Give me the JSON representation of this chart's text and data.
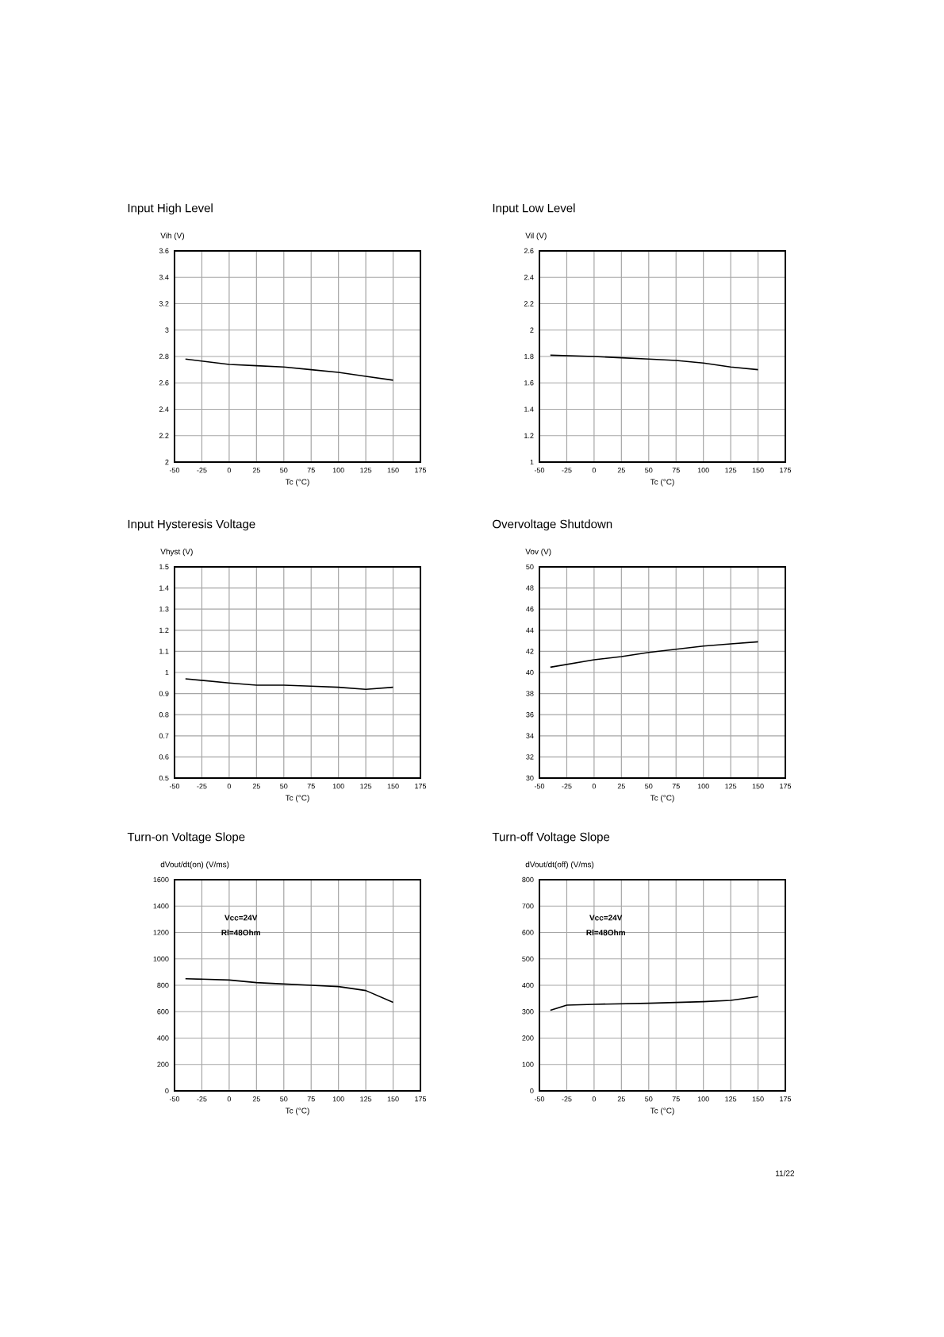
{
  "chart_data": [
    {
      "type": "line",
      "title": "Input High Level",
      "xlabel": "Tc (°C)",
      "ylabel": "Vih (V)",
      "color": "#000000",
      "grid": true,
      "line_style": "solid",
      "xlim": [
        -50,
        175
      ],
      "xticks": [
        -50,
        -25,
        0,
        25,
        50,
        75,
        100,
        125,
        150,
        175
      ],
      "ylim": [
        2,
        3.6
      ],
      "yticks": [
        2,
        2.2,
        2.4,
        2.6,
        2.8,
        3,
        3.2,
        3.4,
        3.6
      ],
      "x": [
        -40,
        0,
        25,
        50,
        75,
        100,
        125,
        150
      ],
      "values": [
        2.78,
        2.74,
        2.73,
        2.72,
        2.7,
        2.68,
        2.65,
        2.62
      ]
    },
    {
      "type": "line",
      "title": "Input Low Level",
      "xlabel": "Tc (°C)",
      "ylabel": "Vil (V)",
      "color": "#000000",
      "grid": true,
      "line_style": "solid",
      "xlim": [
        -50,
        175
      ],
      "xticks": [
        -50,
        -25,
        0,
        25,
        50,
        75,
        100,
        125,
        150,
        175
      ],
      "ylim": [
        1,
        2.6
      ],
      "yticks": [
        1,
        1.2,
        1.4,
        1.6,
        1.8,
        2,
        2.2,
        2.4,
        2.6
      ],
      "x": [
        -40,
        0,
        25,
        50,
        75,
        100,
        125,
        150
      ],
      "values": [
        1.81,
        1.8,
        1.79,
        1.78,
        1.77,
        1.75,
        1.72,
        1.7
      ]
    },
    {
      "type": "line",
      "title": "Input Hysteresis Voltage",
      "xlabel": "Tc (°C)",
      "ylabel": "Vhyst (V)",
      "color": "#000000",
      "grid": true,
      "line_style": "solid",
      "xlim": [
        -50,
        175
      ],
      "xticks": [
        -50,
        -25,
        0,
        25,
        50,
        75,
        100,
        125,
        150,
        175
      ],
      "ylim": [
        0.5,
        1.5
      ],
      "yticks": [
        0.5,
        0.6,
        0.7,
        0.8,
        0.9,
        1,
        1.1,
        1.2,
        1.3,
        1.4,
        1.5
      ],
      "x": [
        -40,
        0,
        25,
        50,
        75,
        100,
        125,
        150
      ],
      "values": [
        0.97,
        0.95,
        0.94,
        0.94,
        0.935,
        0.93,
        0.92,
        0.93
      ]
    },
    {
      "type": "line",
      "title": "Overvoltage Shutdown",
      "xlabel": "Tc (°C)",
      "ylabel": "Vov (V)",
      "color": "#000000",
      "grid": true,
      "line_style": "solid",
      "xlim": [
        -50,
        175
      ],
      "xticks": [
        -50,
        -25,
        0,
        25,
        50,
        75,
        100,
        125,
        150,
        175
      ],
      "ylim": [
        30,
        50
      ],
      "yticks": [
        30,
        32,
        34,
        36,
        38,
        40,
        42,
        44,
        46,
        48,
        50
      ],
      "x": [
        -40,
        0,
        25,
        50,
        75,
        100,
        125,
        150
      ],
      "values": [
        40.5,
        41.2,
        41.5,
        41.9,
        42.2,
        42.5,
        42.7,
        42.9
      ]
    },
    {
      "type": "line",
      "title": "Turn-on Voltage Slope",
      "xlabel": "Tc (°C)",
      "ylabel": "dVout/dt(on) (V/ms)",
      "color": "#000000",
      "grid": true,
      "line_style": "solid",
      "xlim": [
        -50,
        175
      ],
      "xticks": [
        -50,
        -25,
        0,
        25,
        50,
        75,
        100,
        125,
        150,
        175
      ],
      "ylim": [
        0,
        1600
      ],
      "yticks": [
        0,
        200,
        400,
        600,
        800,
        1000,
        1200,
        1400,
        1600
      ],
      "x": [
        -40,
        0,
        25,
        50,
        75,
        100,
        125,
        150
      ],
      "values": [
        850,
        840,
        820,
        810,
        800,
        790,
        760,
        670
      ],
      "annotations": [
        "Vcc=24V",
        "Rl=48Ohm"
      ]
    },
    {
      "type": "line",
      "title": "Turn-off Voltage Slope",
      "xlabel": "Tc (°C)",
      "ylabel": "dVout/dt(off) (V/ms)",
      "color": "#000000",
      "grid": true,
      "line_style": "solid",
      "xlim": [
        -50,
        175
      ],
      "xticks": [
        -50,
        -25,
        0,
        25,
        50,
        75,
        100,
        125,
        150,
        175
      ],
      "ylim": [
        0,
        800
      ],
      "yticks": [
        0,
        100,
        200,
        300,
        400,
        500,
        600,
        700,
        800
      ],
      "x": [
        -40,
        -25,
        0,
        50,
        100,
        125,
        150
      ],
      "values": [
        305,
        325,
        328,
        332,
        338,
        343,
        357
      ],
      "annotations": [
        "Vcc=24V",
        "Rl=48Ohm",
        "11/22"
      ]
    }
  ]
}
